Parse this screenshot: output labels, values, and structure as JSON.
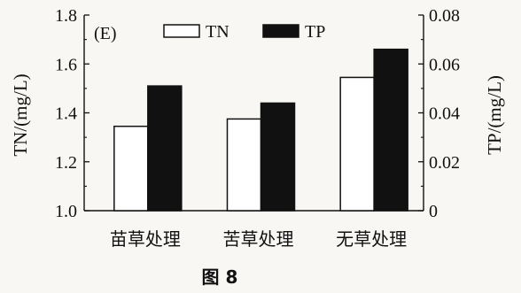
{
  "chart_data": {
    "type": "bar",
    "panel_label": "(E)",
    "categories": [
      "苗草处理",
      "苦草处理",
      "无草处理"
    ],
    "series": [
      {
        "name": "TN",
        "axis": "left",
        "values": [
          1.345,
          1.375,
          1.545
        ],
        "color": "#ffffff"
      },
      {
        "name": "TP",
        "axis": "right",
        "values": [
          0.051,
          0.044,
          0.066
        ],
        "color": "#111111"
      }
    ],
    "ylabel": "TN/(mg/L)",
    "ylim": [
      1.0,
      1.8
    ],
    "yticks": [
      "1.0",
      "1.2",
      "1.4",
      "1.6",
      "1.8"
    ],
    "y2label": "TP/(mg/L)",
    "y2lim": [
      0,
      0.08
    ],
    "y2ticks": [
      "0",
      "0.02",
      "0.04",
      "0.06",
      "0.08"
    ],
    "legend": {
      "position": "top",
      "entries": [
        "TN",
        "TP"
      ]
    },
    "grid": false
  },
  "caption": "图 8"
}
